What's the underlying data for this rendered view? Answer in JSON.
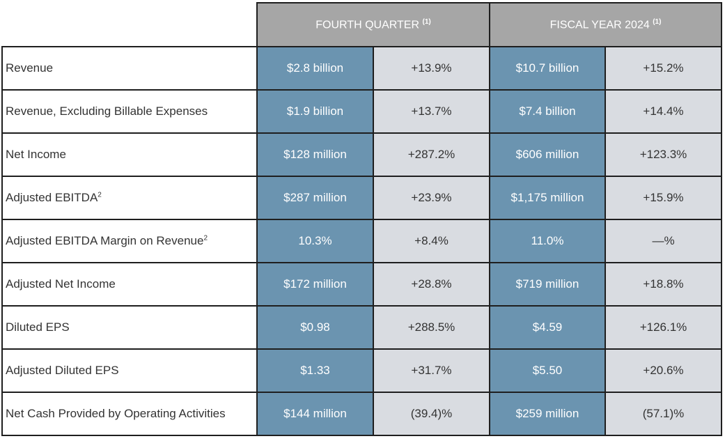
{
  "headers": {
    "q4": {
      "label": "FOURTH QUARTER",
      "note": "(1)"
    },
    "fy": {
      "label": "FISCAL YEAR 2024",
      "note": "(1)"
    }
  },
  "rows": [
    {
      "label": "Revenue",
      "sup": "",
      "q4_value": "$2.8 billion",
      "q4_change": "+13.9%",
      "fy_value": "$10.7 billion",
      "fy_change": "+15.2%"
    },
    {
      "label": "Revenue, Excluding Billable Expenses",
      "sup": "",
      "q4_value": "$1.9 billion",
      "q4_change": "+13.7%",
      "fy_value": "$7.4 billion",
      "fy_change": "+14.4%"
    },
    {
      "label": "Net Income",
      "sup": "",
      "q4_value": "$128 million",
      "q4_change": "+287.2%",
      "fy_value": "$606 million",
      "fy_change": "+123.3%"
    },
    {
      "label": "Adjusted EBITDA",
      "sup": "2",
      "q4_value": "$287 million",
      "q4_change": "+23.9%",
      "fy_value": "$1,175 million",
      "fy_change": "+15.9%"
    },
    {
      "label": "Adjusted EBITDA Margin on Revenue",
      "sup": "2",
      "q4_value": "10.3%",
      "q4_change": "+8.4%",
      "fy_value": "11.0%",
      "fy_change": "—%"
    },
    {
      "label": "Adjusted Net Income",
      "sup": "",
      "q4_value": "$172 million",
      "q4_change": "+28.8%",
      "fy_value": "$719 million",
      "fy_change": "+18.8%"
    },
    {
      "label": "Diluted EPS",
      "sup": "",
      "q4_value": "$0.98",
      "q4_change": "+288.5%",
      "fy_value": "$4.59",
      "fy_change": "+126.1%"
    },
    {
      "label": "Adjusted Diluted EPS",
      "sup": "",
      "q4_value": "$1.33",
      "q4_change": "+31.7%",
      "fy_value": "$5.50",
      "fy_change": "+20.6%"
    },
    {
      "label": "Net Cash Provided by Operating Activities",
      "sup": "",
      "q4_value": "$144 million",
      "q4_change": "(39.4)%",
      "fy_value": "$259 million",
      "fy_change": "(57.1)%"
    }
  ]
}
